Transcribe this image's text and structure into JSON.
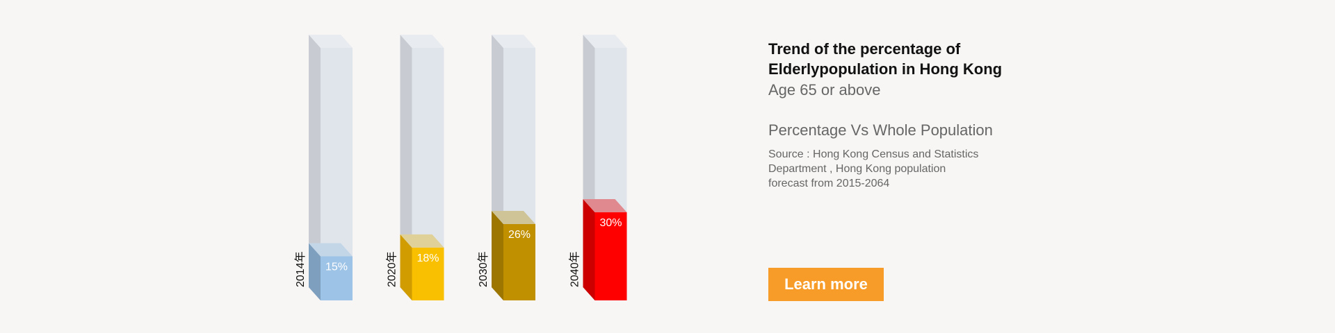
{
  "chart_data": {
    "type": "bar",
    "categories": [
      "2014年",
      "2020年",
      "2030年",
      "2040年"
    ],
    "values": [
      15,
      18,
      26,
      30
    ],
    "value_labels": [
      "15%",
      "18%",
      "26%",
      "30%"
    ],
    "colors": [
      {
        "front": "#9dc3e6",
        "side": "#7f9fbf",
        "top": "#c3d6e8"
      },
      {
        "front": "#f8c000",
        "side": "#d09c00",
        "top": "#e0d198"
      },
      {
        "front": "#c09000",
        "side": "#9c7600",
        "top": "#cfc498"
      },
      {
        "front": "#ff0000",
        "side": "#cc0000",
        "top": "#e08a90"
      }
    ],
    "ylim": [
      0,
      86
    ],
    "title": "Trend of the percentage of Elderlypopulation in Hong Kong",
    "xlabel": "",
    "ylabel": ""
  },
  "info": {
    "title_line1": "Trend of the percentage of",
    "title_line2": "Elderlypopulation in Hong Kong",
    "subtitle": "Age 65 or above",
    "measure": "Percentage Vs Whole Population",
    "source_line1": "Source : Hong Kong Census and Statistics",
    "source_line2": "Department , Hong Kong population",
    "source_line3": "forecast from 2015-2064"
  },
  "button": {
    "label": "Learn more",
    "color": "#f79c28"
  }
}
